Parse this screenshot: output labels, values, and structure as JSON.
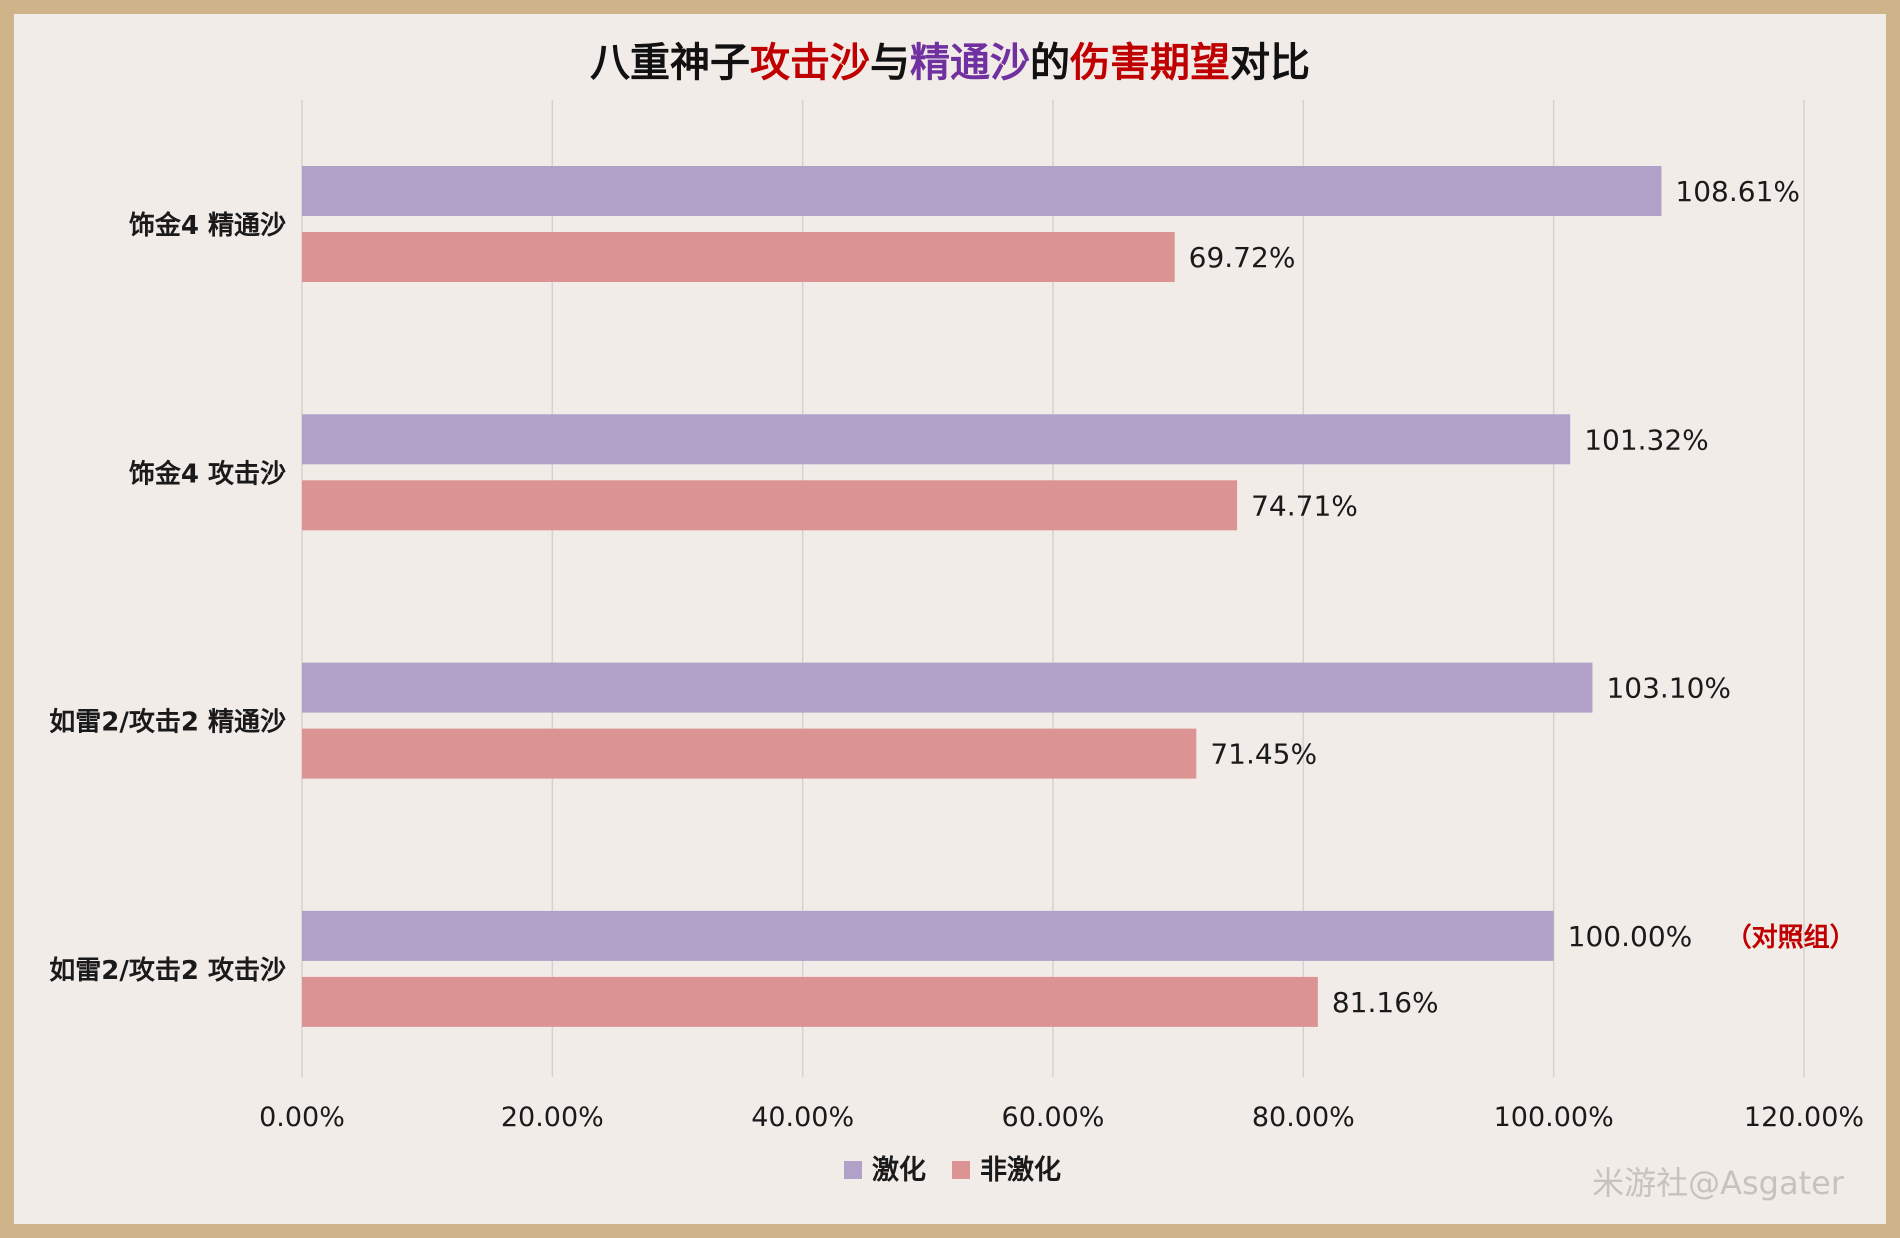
{
  "chart_data": {
    "type": "bar",
    "orientation": "horizontal",
    "title_parts": [
      {
        "text": "八重神子",
        "color": "#111111"
      },
      {
        "text": "攻击沙",
        "color": "#c00000"
      },
      {
        "text": "与",
        "color": "#111111"
      },
      {
        "text": "精通沙",
        "color": "#7030a0"
      },
      {
        "text": "的",
        "color": "#111111"
      },
      {
        "text": "伤害期望",
        "color": "#c00000"
      },
      {
        "text": "对比",
        "color": "#111111"
      }
    ],
    "categories": [
      "饰金4 精通沙",
      "饰金4 攻击沙",
      "如雷2/攻击2 精通沙",
      "如雷2/攻击2 攻击沙"
    ],
    "series": [
      {
        "name": "激化",
        "color": "#b1a1c8",
        "values": [
          108.61,
          101.32,
          103.1,
          100.0
        ],
        "labels": [
          "108.61%",
          "101.32%",
          "103.10%",
          "100.00%"
        ]
      },
      {
        "name": "非激化",
        "color": "#db9493",
        "values": [
          69.72,
          74.71,
          71.45,
          81.16
        ],
        "labels": [
          "69.72%",
          "74.71%",
          "71.45%",
          "81.16%"
        ]
      }
    ],
    "xlim": [
      0,
      120
    ],
    "x_ticks": [
      "0.00%",
      "20.00%",
      "40.00%",
      "60.00%",
      "80.00%",
      "100.00%",
      "120.00%"
    ],
    "grid": true,
    "legend_position": "bottom",
    "annotation": {
      "text": "（对照组）",
      "color": "#c00000",
      "category_index": 3,
      "series_index": 0
    }
  },
  "watermark": "米游社@Asgater"
}
